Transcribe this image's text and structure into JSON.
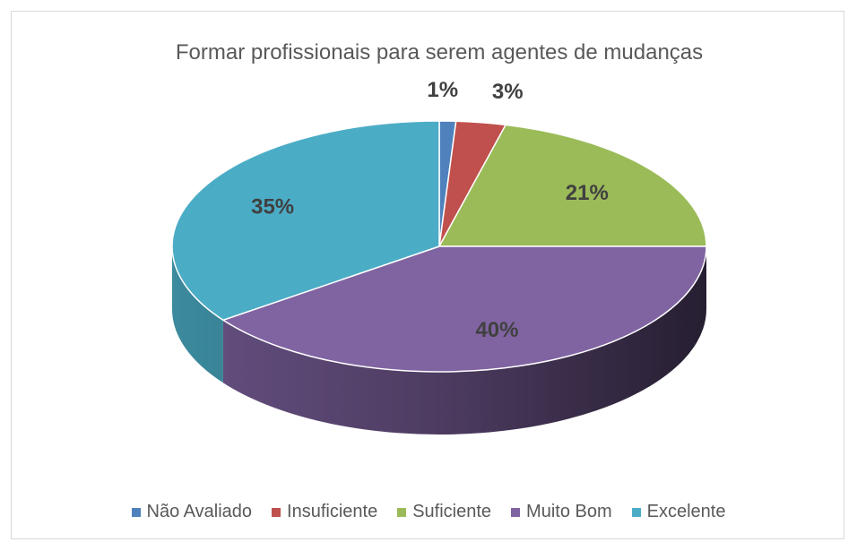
{
  "chart_data": {
    "type": "pie3d",
    "title": "Formar profissionais para serem agentes de mudanças",
    "categories": [
      "Não Avaliado",
      "Insuficiente",
      "Suficiente",
      "Muito Bom",
      "Excelente"
    ],
    "values": [
      1,
      3,
      21,
      40,
      35
    ],
    "value_labels": [
      "1%",
      "3%",
      "21%",
      "40%",
      "35%"
    ],
    "colors": [
      "#4f81bd",
      "#c0504d",
      "#9bbb59",
      "#8064a2",
      "#4bacc6"
    ],
    "legend": "bottom"
  }
}
